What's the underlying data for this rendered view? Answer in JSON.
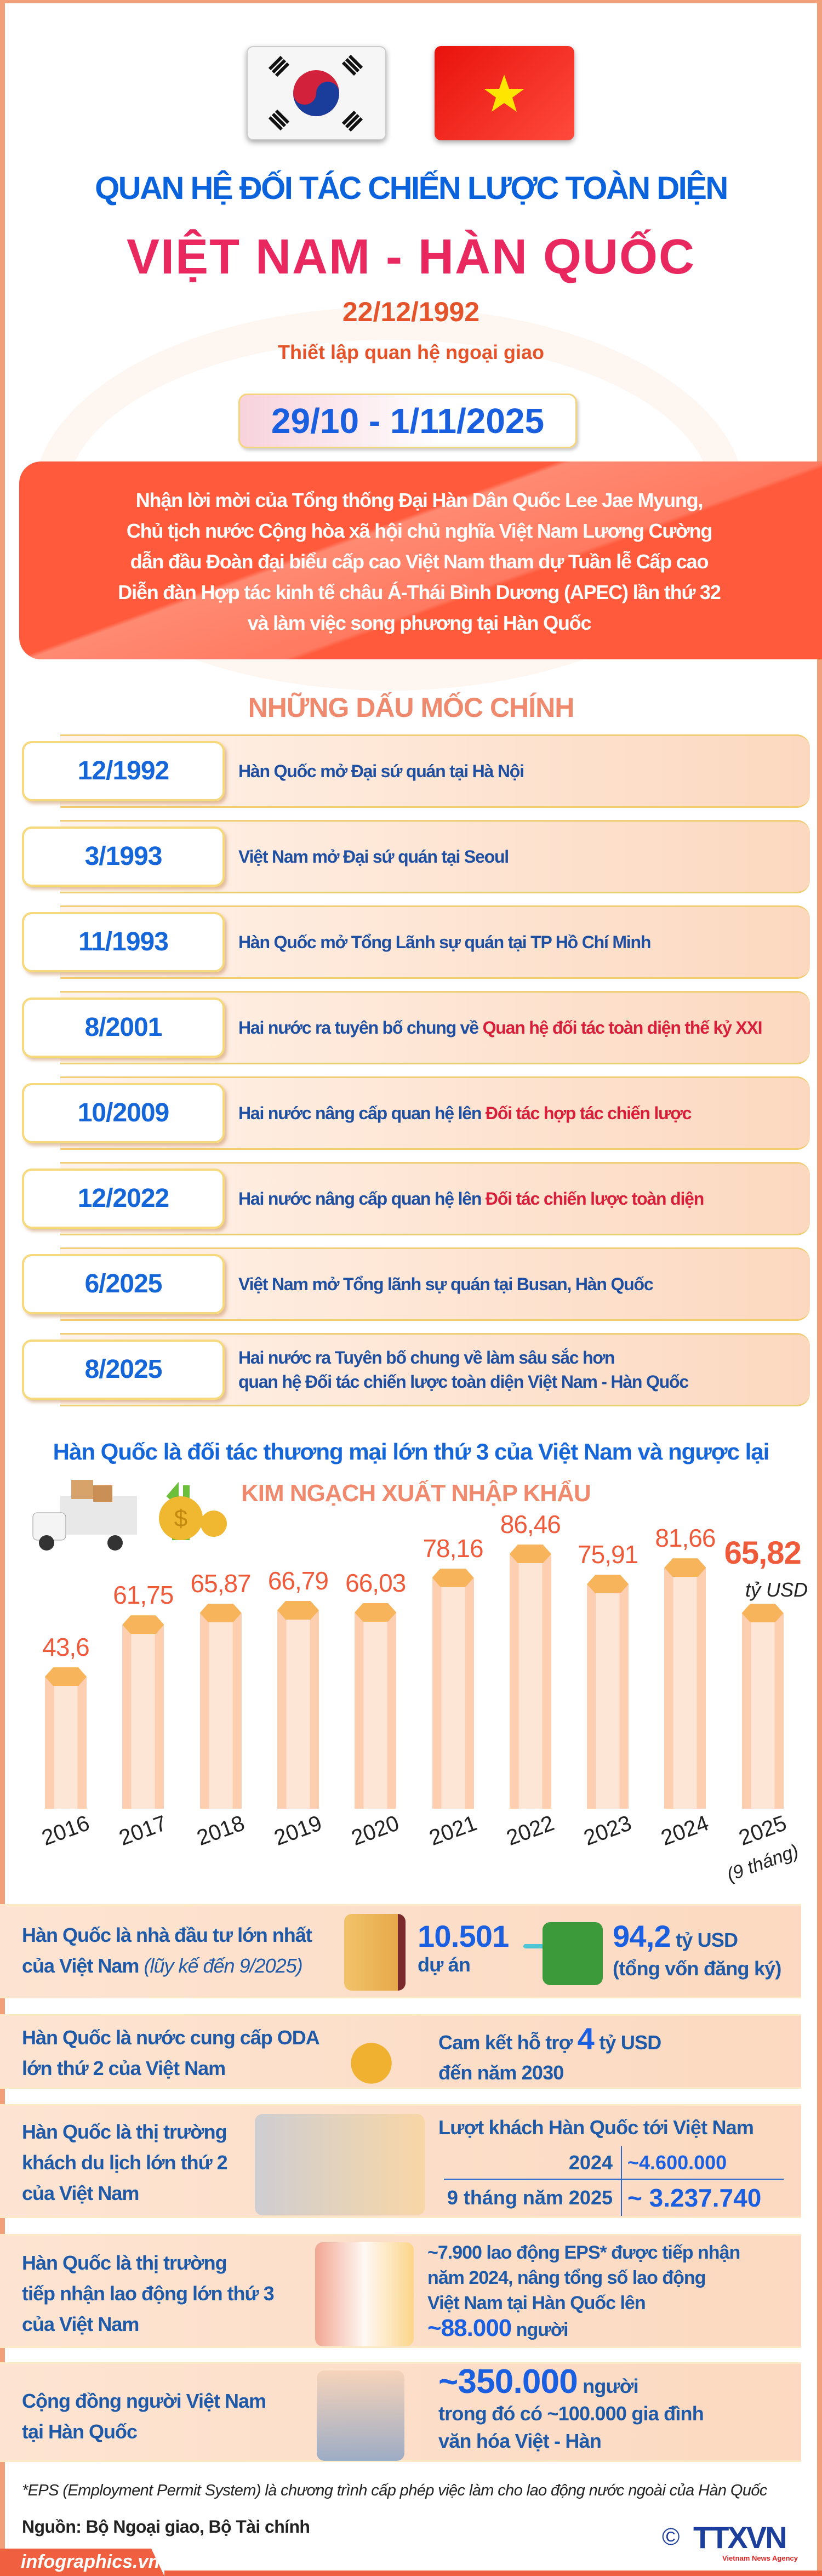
{
  "colors": {
    "blue": "#0a63dc",
    "pink": "#e8285f",
    "orange": "#e4532a",
    "banner": "#ff5a3c",
    "salmon": "#ef8a6e",
    "highlight": "#d81f3a",
    "bar_cap": "#f8b45a"
  },
  "flags": {
    "left": "south-korea-flag",
    "right": "vietnam-flag"
  },
  "header": {
    "title_line1": "QUAN HỆ ĐỐI TÁC CHIẾN LƯỢC TOÀN DIỆN",
    "title_line2": "VIỆT NAM - HÀN QUỐC",
    "established_date": "22/12/1992",
    "established_label": "Thiết lập quan hệ ngoại giao",
    "visit_dates": "29/10 - 1/11/2025"
  },
  "banner": {
    "lines": [
      "Nhận lời mời của Tổng thống Đại Hàn Dân Quốc Lee Jae Myung,",
      "Chủ tịch nước Cộng hòa xã hội chủ nghĩa Việt Nam Lương Cường",
      "dẫn đầu Đoàn đại biểu cấp cao Việt Nam tham dự Tuần lễ Cấp cao",
      "Diễn đàn Hợp tác kinh tế châu Á-Thái Bình Dương (APEC) lần thứ 32",
      "và làm việc song phương tại Hàn Quốc"
    ]
  },
  "milestones": {
    "title": "NHỮNG DẤU MỐC CHÍNH",
    "items": [
      {
        "date": "12/1992",
        "text": "Hàn Quốc mở Đại sứ quán tại Hà Nội",
        "highlight": ""
      },
      {
        "date": "3/1993",
        "text": "Việt Nam mở Đại sứ quán tại Seoul",
        "highlight": ""
      },
      {
        "date": "11/1993",
        "text": "Hàn Quốc mở Tổng Lãnh sự quán tại TP Hồ Chí Minh",
        "highlight": ""
      },
      {
        "date": "8/2001",
        "text": "Hai nước ra tuyên bố chung về ",
        "highlight": "Quan hệ đối tác toàn diện thế kỷ XXI"
      },
      {
        "date": "10/2009",
        "text": "Hai nước nâng cấp quan hệ lên ",
        "highlight": "Đối tác hợp tác chiến lược"
      },
      {
        "date": "12/2022",
        "text": "Hai nước nâng cấp quan hệ lên ",
        "highlight": "Đối tác chiến lược toàn diện"
      },
      {
        "date": "6/2025",
        "text": "Việt Nam mở Tổng lãnh sự quán tại Busan, Hàn Quốc",
        "highlight": ""
      },
      {
        "date": "8/2025",
        "text": "Hai nước ra Tuyên bố chung về làm sâu sắc hơn",
        "text2": "quan hệ Đối tác chiến lược toàn diện Việt Nam - Hàn Quốc",
        "highlight": ""
      }
    ]
  },
  "trade": {
    "headline": "Hàn Quốc là đối tác thương mại lớn thứ 3 của Việt Nam và ngược lại"
  },
  "chart_data": {
    "type": "bar",
    "title": "KIM NGẠCH XUẤT NHẬP KHẨU",
    "categories": [
      "2016",
      "2017",
      "2018",
      "2019",
      "2020",
      "2021",
      "2022",
      "2023",
      "2024",
      "2025"
    ],
    "values": [
      43.6,
      61.75,
      65.87,
      66.79,
      66.03,
      78.16,
      86.46,
      75.91,
      81.66,
      65.82
    ],
    "value_labels": [
      "43,6",
      "61,75",
      "65,87",
      "66,79",
      "66,03",
      "78,16",
      "86,46",
      "75,91",
      "81,66",
      "65,82"
    ],
    "unit": "tỷ USD",
    "last_note": "(9 tháng)",
    "grid": false,
    "legend": "none"
  },
  "facts": [
    {
      "label": "Hàn Quốc là nhà đầu tư lớn nhất",
      "label2": "của Việt Nam",
      "note": "(lũy kế đến 9/2025)",
      "projects": "10.501",
      "projects_unit": "dự án",
      "capital": "94,2",
      "capital_unit": "tỷ USD",
      "capital_note": "(tổng vốn đăng ký)",
      "icon": "folder-icon"
    },
    {
      "label": "Hàn Quốc là nước cung cấp ODA",
      "label2": "lớn thứ 2 của Việt Nam",
      "pre": "Cam kết hỗ trợ ",
      "value": "4",
      "post": " tỷ USD",
      "line2": "đến năm 2030",
      "icon": "money-bag-icon"
    },
    {
      "label": "Hàn Quốc là thị trường",
      "label2": "khách du lịch lớn thứ 2",
      "label3": "của Việt Nam",
      "title": "Lượt khách Hàn Quốc tới Việt Nam",
      "rows": [
        {
          "period": "2024",
          "value": "~4.600.000"
        },
        {
          "period": "9 tháng năm 2025",
          "value": "~ 3.237.740"
        }
      ],
      "icon": "tourists-icon"
    },
    {
      "label": "Hàn Quốc là thị trường",
      "label2": "tiếp nhận lao động lớn thứ 3",
      "label3": "của Việt Nam",
      "line1": "~7.900 lao động EPS* được tiếp nhận",
      "line2": "năm 2024, nâng tổng số lao động",
      "line3": "Việt Nam tại Hàn Quốc lên",
      "value": "~88.000",
      "unit": " người",
      "icon": "workers-icon"
    },
    {
      "label": "Cộng đồng người Việt Nam",
      "label2": "tại Hàn Quốc",
      "value": "~350.000",
      "unit": " người",
      "line2": "trong đó có ~100.000 gia đình",
      "line3": "văn hóa Việt - Hàn",
      "icon": "family-icon"
    }
  ],
  "footer": {
    "footnote": "*EPS (Employment Permit System) là chương trình cấp phép việc làm cho lao động nước ngoài của Hàn Quốc",
    "source": "Nguồn: Bộ Ngoại giao, Bộ Tài chính",
    "site": "infographics.vn",
    "logo": "TTXVN",
    "logo_sub": "Vietnam News Agency",
    "copyright": "©"
  }
}
